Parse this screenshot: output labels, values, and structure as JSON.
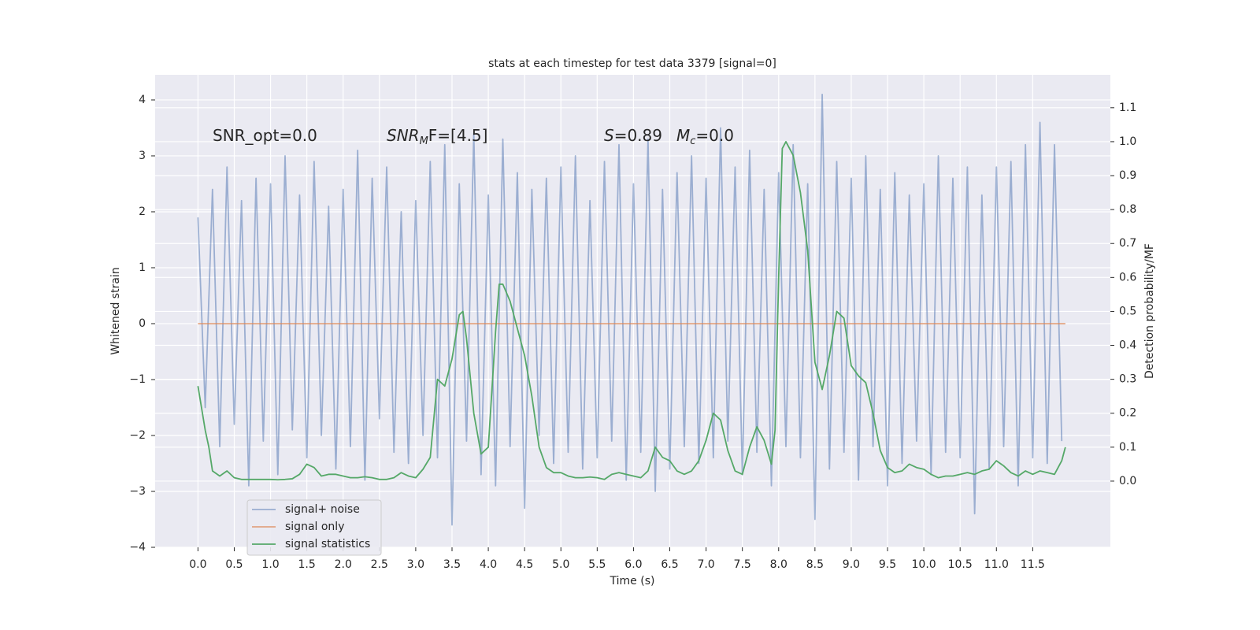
{
  "chart_data": {
    "type": "line",
    "title": "stats at each timestep for test data 3379 [signal=0]",
    "xlabel": "Time (s)",
    "ylabel": "Whitened strain",
    "y2label": "Detection probability/MF",
    "xlim": [
      -0.59,
      12.57
    ],
    "ylim": [
      -4.0,
      4.45
    ],
    "y2lim": [
      -0.195,
      1.197
    ],
    "grid": true,
    "legend": "lower left",
    "background": "#eaeaf2",
    "xticks": [
      {
        "value": 0,
        "label": "0.0"
      },
      {
        "value": 0.5,
        "label": "0.5"
      },
      {
        "value": 1,
        "label": "1.0"
      },
      {
        "value": 1.5,
        "label": "1.5"
      },
      {
        "value": 2,
        "label": "2.0"
      },
      {
        "value": 2.5,
        "label": "2.5"
      },
      {
        "value": 3,
        "label": "3.0"
      },
      {
        "value": 3.5,
        "label": "3.5"
      },
      {
        "value": 4,
        "label": "4.0"
      },
      {
        "value": 4.5,
        "label": "4.5"
      },
      {
        "value": 5,
        "label": "5.0"
      },
      {
        "value": 5.5,
        "label": "5.5"
      },
      {
        "value": 6,
        "label": "6.0"
      },
      {
        "value": 6.5,
        "label": "6.5"
      },
      {
        "value": 7,
        "label": "7.0"
      },
      {
        "value": 7.5,
        "label": "7.5"
      },
      {
        "value": 8,
        "label": "8.0"
      },
      {
        "value": 8.5,
        "label": "8.5"
      },
      {
        "value": 9,
        "label": "9.0"
      },
      {
        "value": 9.5,
        "label": "9.5"
      },
      {
        "value": 10,
        "label": "10.0"
      },
      {
        "value": 10.5,
        "label": "10.5"
      },
      {
        "value": 11,
        "label": "11.0"
      },
      {
        "value": 11.5,
        "label": "11.5"
      }
    ],
    "yticks": [
      {
        "value": -4,
        "label": "−4"
      },
      {
        "value": -3,
        "label": "−3"
      },
      {
        "value": -2,
        "label": "−2"
      },
      {
        "value": -1,
        "label": "−1"
      },
      0,
      1,
      2,
      3,
      4
    ],
    "y2ticks": [
      {
        "value": 0,
        "label": "0.0"
      },
      0.1,
      0.2,
      0.3,
      0.4,
      0.5,
      0.6,
      0.7,
      0.8,
      0.9,
      {
        "value": 1,
        "label": "1.0"
      },
      1.1
    ],
    "annotations": [
      {
        "parts": [
          {
            "text": "SNR_opt=0.0",
            "style": "normal"
          }
        ]
      },
      {
        "parts": [
          {
            "text": "SNR",
            "style": "italic"
          },
          {
            "text": "M",
            "style": "sub"
          },
          {
            "text": "F=[4.5]",
            "style": "normal"
          }
        ]
      },
      {
        "parts": [
          {
            "text": "S",
            "style": "italic"
          },
          {
            "text": "=0.89",
            "style": "normal"
          }
        ]
      },
      {
        "parts": [
          {
            "text": "M",
            "style": "italic"
          },
          {
            "text": "c",
            "style": "sub"
          },
          {
            "text": "=0.0",
            "style": "normal"
          }
        ]
      }
    ],
    "series": [
      {
        "name": "signal+ noise",
        "color": "#4c72b0",
        "opacity": 0.5,
        "x": [
          0,
          0.1,
          0.2,
          0.3,
          0.4,
          0.5,
          0.6,
          0.7,
          0.8,
          0.9,
          1,
          1.1,
          1.2,
          1.3,
          1.4,
          1.5,
          1.6,
          1.7,
          1.8,
          1.9,
          2,
          2.1,
          2.2,
          2.3,
          2.4,
          2.5,
          2.6,
          2.7,
          2.8,
          2.9,
          3,
          3.1,
          3.2,
          3.3,
          3.4,
          3.5,
          3.6,
          3.7,
          3.8,
          3.9,
          4,
          4.1,
          4.2,
          4.3,
          4.4,
          4.5,
          4.6,
          4.7,
          4.8,
          4.9,
          5,
          5.1,
          5.2,
          5.3,
          5.4,
          5.5,
          5.6,
          5.7,
          5.8,
          5.9,
          6,
          6.1,
          6.2,
          6.3,
          6.4,
          6.5,
          6.6,
          6.7,
          6.8,
          6.9,
          7,
          7.1,
          7.2,
          7.3,
          7.4,
          7.5,
          7.6,
          7.7,
          7.8,
          7.9,
          8,
          8.1,
          8.2,
          8.3,
          8.4,
          8.5,
          8.6,
          8.7,
          8.8,
          8.9,
          9,
          9.1,
          9.2,
          9.3,
          9.4,
          9.5,
          9.6,
          9.7,
          9.8,
          9.9,
          10,
          10.1,
          10.2,
          10.3,
          10.4,
          10.5,
          10.6,
          10.7,
          10.8,
          10.9,
          11,
          11.1,
          11.2,
          11.3,
          11.4,
          11.5,
          11.6,
          11.7,
          11.8,
          11.9
        ],
        "values": [
          1.9,
          -1.5,
          2.4,
          -2.2,
          2.8,
          -1.8,
          2.2,
          -2.9,
          2.6,
          -2.1,
          2.5,
          -2.7,
          3.0,
          -1.9,
          2.3,
          -2.4,
          2.9,
          -2.0,
          2.1,
          -2.6,
          2.4,
          -2.2,
          3.1,
          -2.8,
          2.6,
          -1.7,
          2.8,
          -2.3,
          2.0,
          -2.5,
          2.2,
          -2.0,
          2.9,
          -2.4,
          3.2,
          -3.6,
          2.5,
          -2.1,
          3.4,
          -2.7,
          2.3,
          -2.9,
          3.3,
          -2.2,
          2.7,
          -3.3,
          2.4,
          -2.0,
          2.6,
          -2.5,
          2.8,
          -2.3,
          3.0,
          -2.6,
          2.2,
          -2.4,
          2.9,
          -2.1,
          3.2,
          -2.8,
          2.5,
          -2.3,
          3.3,
          -3.0,
          2.4,
          -2.6,
          2.7,
          -2.2,
          3.0,
          -2.5,
          2.6,
          -2.4,
          3.5,
          -2.1,
          2.8,
          -2.7,
          3.1,
          -2.3,
          2.4,
          -2.9,
          2.7,
          -2.2,
          3.2,
          -2.4,
          2.5,
          -3.5,
          4.1,
          -2.6,
          2.9,
          -2.3,
          2.6,
          -2.8,
          3.0,
          -2.2,
          2.4,
          -2.9,
          2.7,
          -2.5,
          2.3,
          -2.1,
          2.5,
          -2.7,
          3.0,
          -2.3,
          2.6,
          -2.4,
          2.8,
          -3.4,
          2.3,
          -2.6,
          2.8,
          -2.2,
          2.9,
          -2.9,
          3.2,
          -2.4,
          3.6,
          -2.5,
          3.2,
          -2.1
        ]
      },
      {
        "name": "signal only",
        "color": "#dd8452",
        "opacity": 0.7,
        "x": [
          0,
          11.95
        ],
        "values": [
          0,
          0
        ]
      },
      {
        "name": "signal statistics",
        "color": "#55a868",
        "opacity": 1,
        "axis": "y2",
        "x": [
          0,
          0.1,
          0.15,
          0.2,
          0.3,
          0.4,
          0.5,
          0.6,
          0.7,
          0.8,
          0.9,
          1,
          1.1,
          1.2,
          1.3,
          1.4,
          1.5,
          1.6,
          1.7,
          1.8,
          1.9,
          2,
          2.1,
          2.2,
          2.3,
          2.4,
          2.5,
          2.6,
          2.7,
          2.8,
          2.9,
          3,
          3.1,
          3.2,
          3.3,
          3.4,
          3.5,
          3.6,
          3.65,
          3.7,
          3.8,
          3.9,
          4,
          4.1,
          4.15,
          4.2,
          4.3,
          4.4,
          4.5,
          4.6,
          4.7,
          4.8,
          4.9,
          5,
          5.1,
          5.2,
          5.3,
          5.4,
          5.5,
          5.6,
          5.7,
          5.8,
          5.9,
          6,
          6.1,
          6.2,
          6.3,
          6.4,
          6.5,
          6.6,
          6.7,
          6.8,
          6.9,
          7,
          7.1,
          7.2,
          7.3,
          7.4,
          7.5,
          7.6,
          7.7,
          7.8,
          7.9,
          7.95,
          8,
          8.05,
          8.1,
          8.2,
          8.3,
          8.4,
          8.5,
          8.6,
          8.7,
          8.8,
          8.9,
          9,
          9.1,
          9.2,
          9.3,
          9.4,
          9.5,
          9.6,
          9.7,
          9.8,
          9.9,
          10,
          10.1,
          10.2,
          10.3,
          10.4,
          10.5,
          10.6,
          10.7,
          10.8,
          10.9,
          11,
          11.1,
          11.2,
          11.3,
          11.4,
          11.5,
          11.6,
          11.7,
          11.8,
          11.9,
          11.95
        ],
        "values": [
          0.28,
          0.15,
          0.1,
          0.03,
          0.015,
          0.03,
          0.01,
          0.005,
          0.005,
          0.005,
          0.005,
          0.005,
          0.004,
          0.005,
          0.007,
          0.02,
          0.05,
          0.04,
          0.015,
          0.02,
          0.02,
          0.015,
          0.01,
          0.01,
          0.013,
          0.01,
          0.005,
          0.005,
          0.01,
          0.025,
          0.015,
          0.01,
          0.035,
          0.07,
          0.3,
          0.28,
          0.36,
          0.49,
          0.5,
          0.42,
          0.2,
          0.08,
          0.1,
          0.44,
          0.58,
          0.58,
          0.53,
          0.45,
          0.37,
          0.25,
          0.1,
          0.04,
          0.025,
          0.025,
          0.015,
          0.01,
          0.01,
          0.012,
          0.01,
          0.005,
          0.02,
          0.025,
          0.02,
          0.015,
          0.01,
          0.03,
          0.1,
          0.07,
          0.06,
          0.03,
          0.02,
          0.03,
          0.06,
          0.12,
          0.2,
          0.18,
          0.09,
          0.03,
          0.02,
          0.1,
          0.16,
          0.12,
          0.05,
          0.15,
          0.6,
          0.98,
          1.0,
          0.96,
          0.85,
          0.68,
          0.35,
          0.27,
          0.37,
          0.5,
          0.48,
          0.34,
          0.31,
          0.29,
          0.2,
          0.09,
          0.04,
          0.025,
          0.03,
          0.05,
          0.04,
          0.035,
          0.02,
          0.01,
          0.015,
          0.015,
          0.02,
          0.025,
          0.02,
          0.03,
          0.035,
          0.06,
          0.045,
          0.025,
          0.015,
          0.03,
          0.02,
          0.03,
          0.025,
          0.02,
          0.06,
          0.1
        ]
      }
    ]
  }
}
